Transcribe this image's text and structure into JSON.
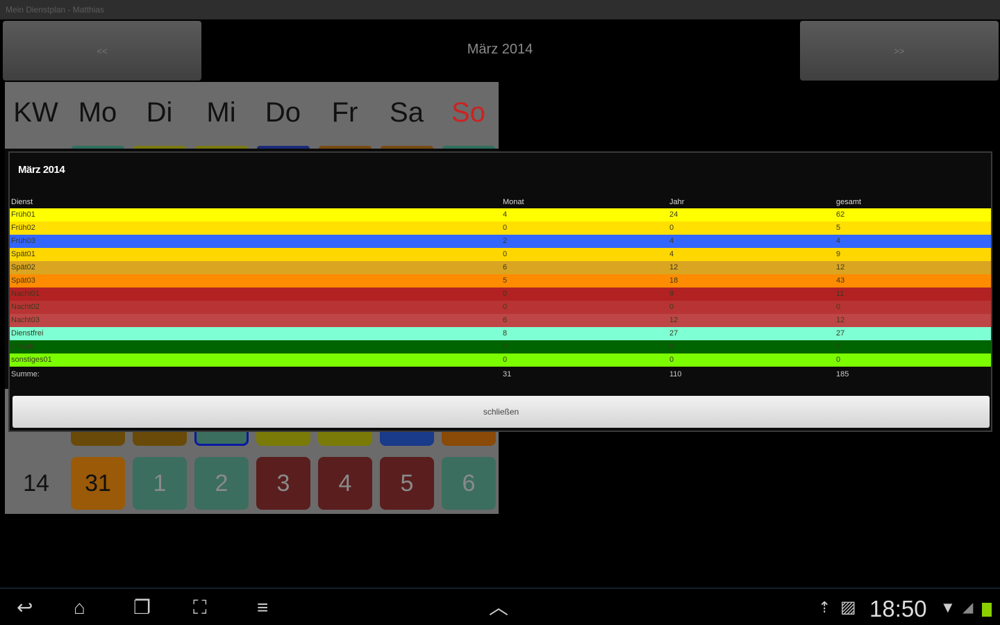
{
  "app_title": "Mein Dienstplan - Matthias",
  "nav": {
    "prev_label": "<<",
    "next_label": ">>",
    "month_label": "März 2014"
  },
  "calendar": {
    "headers": [
      "KW",
      "Mo",
      "Di",
      "Mi",
      "Do",
      "Fr",
      "Sa",
      "So"
    ],
    "sunday_color": "#cc2222",
    "top_strips": [
      "#2f6f5f",
      "#7a7a10",
      "#7a7a10",
      "#1a2a7a",
      "#7a4a10",
      "#7a4a10",
      "#2f6f5f"
    ],
    "partial_row": [
      "#6a4a08",
      "#6a4a08",
      "#3b6e5e",
      "#7a7a08",
      "#7a7a08",
      "#1a3a8a",
      "#8a4a08"
    ],
    "last_week": {
      "kw": "14",
      "days": [
        {
          "day": "31",
          "color": "#9a5a08"
        },
        {
          "day": "1",
          "color": "#3b6e5e"
        },
        {
          "day": "2",
          "color": "#3b6e5e"
        },
        {
          "day": "3",
          "color": "#5a1e1e"
        },
        {
          "day": "4",
          "color": "#5a1e1e"
        },
        {
          "day": "5",
          "color": "#5a1e1e"
        },
        {
          "day": "6",
          "color": "#3b6e5e"
        }
      ]
    }
  },
  "dialog": {
    "title": "März 2014",
    "columns": [
      "Dienst",
      "Monat",
      "Jahr",
      "gesamt"
    ],
    "rows": [
      {
        "name": "Früh01",
        "monat": "4",
        "jahr": "24",
        "gesamt": "62",
        "color": "#ffff00"
      },
      {
        "name": "Früh02",
        "monat": "0",
        "jahr": "0",
        "gesamt": "5",
        "color": "#ffe000"
      },
      {
        "name": "Früh03",
        "monat": "2",
        "jahr": "4",
        "gesamt": "4",
        "color": "#3366ff"
      },
      {
        "name": "Spät01",
        "monat": "0",
        "jahr": "4",
        "gesamt": "9",
        "color": "#ffd700"
      },
      {
        "name": "Spät02",
        "monat": "6",
        "jahr": "12",
        "gesamt": "12",
        "color": "#daa520"
      },
      {
        "name": "Spät03",
        "monat": "5",
        "jahr": "18",
        "gesamt": "43",
        "color": "#ff8c00"
      },
      {
        "name": "Nacht01",
        "monat": "0",
        "jahr": "9",
        "gesamt": "11",
        "color": "#b22222"
      },
      {
        "name": "Nacht02",
        "monat": "0",
        "jahr": "0",
        "gesamt": "0",
        "color": "#b83434"
      },
      {
        "name": "Nacht03",
        "monat": "6",
        "jahr": "12",
        "gesamt": "12",
        "color": "#bf4646"
      },
      {
        "name": "Dienstfrei",
        "monat": "8",
        "jahr": "27",
        "gesamt": "27",
        "color": "#7fffd4"
      },
      {
        "name": "Urlaub",
        "monat": "0",
        "jahr": "0",
        "gesamt": "0",
        "color": "#006400"
      },
      {
        "name": "sonstiges01",
        "monat": "0",
        "jahr": "0",
        "gesamt": "0",
        "color": "#7cfc00"
      }
    ],
    "sum": {
      "label": "Summe:",
      "monat": "31",
      "jahr": "110",
      "gesamt": "185"
    },
    "close_label": "schließen"
  },
  "statusbar": {
    "time": "18:50"
  }
}
